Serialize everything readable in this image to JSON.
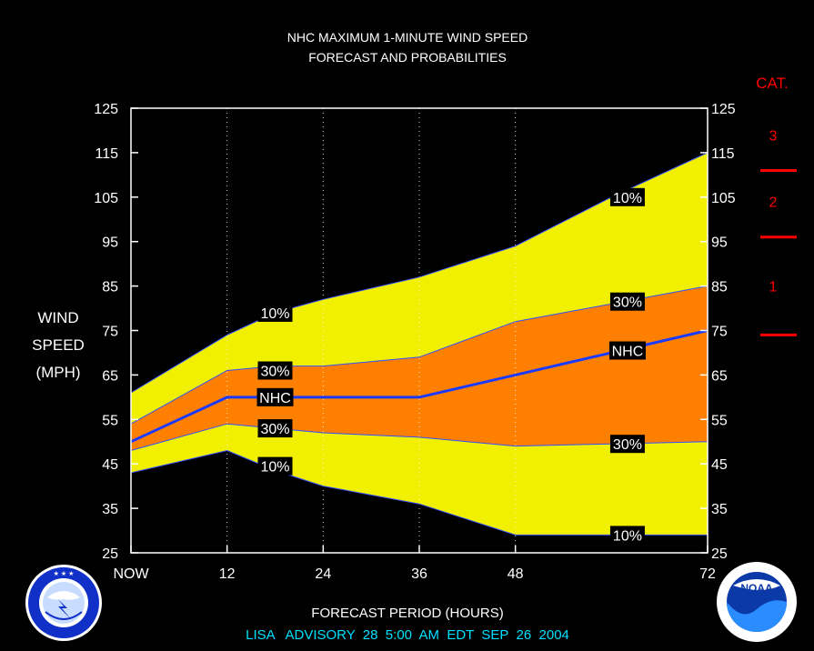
{
  "chart_data": {
    "type": "area",
    "title": "NHC MAXIMUM 1-MINUTE WIND SPEED",
    "subtitle": "FORECAST AND PROBABILITIES",
    "ylabel": [
      "WIND",
      "SPEED",
      "(MPH)"
    ],
    "xlabel": "FORECAST PERIOD (HOURS)",
    "ylim": [
      25,
      125
    ],
    "xlim": [
      0,
      72
    ],
    "yticks": [
      25,
      35,
      45,
      55,
      65,
      75,
      85,
      95,
      105,
      115,
      125
    ],
    "xticks": [
      {
        "value": 0,
        "label": "NOW"
      },
      {
        "value": 12,
        "label": "12"
      },
      {
        "value": 24,
        "label": "24"
      },
      {
        "value": 36,
        "label": "36"
      },
      {
        "value": 48,
        "label": "48"
      },
      {
        "value": 72,
        "label": "72"
      }
    ],
    "vgrid": [
      12,
      24,
      36,
      48
    ],
    "x": [
      0,
      12,
      18,
      24,
      36,
      48,
      60,
      72
    ],
    "bands": {
      "upper10": [
        61,
        74,
        79,
        82,
        87,
        94,
        105,
        115
      ],
      "upper30": [
        54,
        66,
        67,
        67,
        69,
        77,
        81,
        85
      ],
      "nhc": [
        50,
        60,
        60,
        60,
        60,
        65,
        70,
        75
      ],
      "lower30": [
        48,
        54,
        53,
        52,
        51,
        49,
        49.5,
        50
      ],
      "lower10": [
        43,
        48,
        43.5,
        40,
        36,
        29,
        29,
        29
      ]
    },
    "series": [
      {
        "name": "10%",
        "color": "#f0f000"
      },
      {
        "name": "30%",
        "color": "#ff8000"
      },
      {
        "name": "NHC",
        "color": "#1a3aff"
      }
    ],
    "annotations": [
      {
        "text": "10%",
        "x": 18,
        "y": 79
      },
      {
        "text": "30%",
        "x": 18,
        "y": 66
      },
      {
        "text": "NHC",
        "x": 18,
        "y": 60
      },
      {
        "text": "30%",
        "x": 18,
        "y": 53
      },
      {
        "text": "10%",
        "x": 18,
        "y": 44.5
      },
      {
        "text": "10%",
        "x": 62,
        "y": 105
      },
      {
        "text": "30%",
        "x": 62,
        "y": 81.5
      },
      {
        "text": "NHC",
        "x": 62,
        "y": 70.5
      },
      {
        "text": "30%",
        "x": 62,
        "y": 49.5
      },
      {
        "text": "10%",
        "x": 62,
        "y": 29
      }
    ],
    "categories": {
      "header": "CAT.",
      "boundaries": [
        74,
        96,
        111
      ],
      "labels": [
        {
          "text": "1",
          "y": 85
        },
        {
          "text": "2",
          "y": 104
        },
        {
          "text": "3",
          "y": 119
        }
      ],
      "color": "#ff0000"
    },
    "grid": "vertical dotted",
    "colors": {
      "background": "#000000",
      "upper_band": "#f0f000",
      "middle_band": "#ff8000",
      "nhc_line": "#1a3aff",
      "advisory_text": "#00e0ff"
    }
  },
  "footer": {
    "advisory": "LISA   ADVISORY  28  5:00  AM  EDT  SEP  26  2004"
  },
  "logos": [
    {
      "name": "national-weather-service-logo",
      "text": "NATIONAL WEATHER SERVICE"
    },
    {
      "name": "noaa-logo",
      "text": "NOAA"
    }
  ]
}
